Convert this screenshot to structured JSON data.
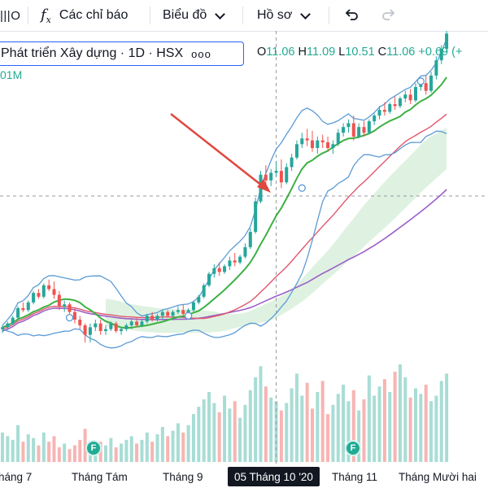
{
  "toolbar": {
    "indicators_label": "Các chỉ báo",
    "chart_type_label": "Biểu đồ",
    "profile_label": "Hồ sơ",
    "fx_icon": "fx-icon",
    "undo_icon": "undo-icon",
    "redo_icon": "redo-icon",
    "truncated_icon": "compare-icon"
  },
  "symbol": {
    "title": "Phát triển Xây dựng · 1D · HSX",
    "more": "ooo"
  },
  "ohlc": {
    "o_label": "O",
    "o": "11.06",
    "h_label": "H",
    "h": "11.09",
    "l_label": "L",
    "l": "10.51",
    "c_label": "C",
    "c": "11.06",
    "change": "+0.69",
    "change_paren": "(+"
  },
  "volume_legend": "01M",
  "events": [
    {
      "label": "F"
    },
    {
      "label": "F"
    }
  ],
  "colors": {
    "up": "#26a69a",
    "down": "#ef5350",
    "bollinger": "#5b9bd5",
    "ma_green": "#3cb043",
    "ma_red": "#e0576c",
    "ma_purple": "#9c5fc9",
    "cloud": "#d7efd9",
    "arrow": "#e0483e"
  },
  "chart_data": {
    "type": "candlestick",
    "x_tick_labels": [
      "háng 7",
      "Tháng Tám",
      "Tháng 9",
      "05 Tháng 10 '20",
      "Tháng 11",
      "Tháng Mười hai"
    ],
    "highlighted_x_label": "05 Tháng 10 '20",
    "y_range": [
      2.6,
      11.6
    ],
    "candles": [
      [
        3.95,
        4.05,
        3.85,
        4.0
      ],
      [
        4.0,
        4.15,
        3.95,
        4.1
      ],
      [
        4.1,
        4.3,
        4.05,
        4.25
      ],
      [
        4.25,
        4.55,
        4.2,
        4.5
      ],
      [
        4.5,
        4.65,
        4.4,
        4.45
      ],
      [
        4.45,
        4.7,
        4.4,
        4.65
      ],
      [
        4.65,
        4.95,
        4.6,
        4.9
      ],
      [
        4.9,
        5.0,
        4.75,
        4.8
      ],
      [
        4.8,
        5.15,
        4.75,
        5.1
      ],
      [
        5.1,
        5.25,
        4.95,
        5.0
      ],
      [
        5.0,
        5.2,
        4.75,
        4.85
      ],
      [
        4.85,
        4.95,
        4.45,
        4.55
      ],
      [
        4.55,
        4.7,
        4.4,
        4.6
      ],
      [
        4.6,
        4.65,
        4.3,
        4.4
      ],
      [
        4.4,
        4.5,
        4.1,
        4.2
      ],
      [
        4.2,
        4.3,
        3.95,
        4.05
      ],
      [
        4.05,
        4.1,
        3.6,
        3.8
      ],
      [
        3.8,
        4.1,
        3.6,
        4.0
      ],
      [
        4.0,
        4.2,
        3.9,
        4.1
      ],
      [
        4.1,
        4.2,
        3.8,
        3.9
      ],
      [
        3.9,
        4.05,
        3.8,
        3.95
      ],
      [
        3.95,
        4.15,
        3.9,
        4.1
      ],
      [
        4.1,
        4.15,
        3.85,
        3.9
      ],
      [
        3.9,
        4.0,
        3.8,
        3.95
      ],
      [
        3.95,
        4.1,
        3.9,
        4.05
      ],
      [
        4.05,
        4.2,
        3.95,
        4.15
      ],
      [
        4.15,
        4.25,
        4.0,
        4.05
      ],
      [
        4.05,
        4.2,
        4.0,
        4.15
      ],
      [
        4.15,
        4.35,
        4.1,
        4.3
      ],
      [
        4.3,
        4.4,
        4.15,
        4.2
      ],
      [
        4.2,
        4.35,
        4.15,
        4.3
      ],
      [
        4.3,
        4.45,
        4.2,
        4.4
      ],
      [
        4.4,
        4.45,
        4.25,
        4.3
      ],
      [
        4.3,
        4.45,
        4.25,
        4.4
      ],
      [
        4.4,
        4.55,
        4.35,
        4.45
      ],
      [
        4.45,
        4.6,
        4.3,
        4.35
      ],
      [
        4.35,
        4.5,
        4.25,
        4.45
      ],
      [
        4.45,
        4.7,
        4.4,
        4.65
      ],
      [
        4.65,
        4.85,
        4.6,
        4.8
      ],
      [
        4.8,
        5.15,
        4.75,
        5.1
      ],
      [
        5.1,
        5.45,
        5.05,
        5.4
      ],
      [
        5.4,
        5.65,
        5.3,
        5.55
      ],
      [
        5.55,
        5.7,
        5.35,
        5.45
      ],
      [
        5.45,
        5.65,
        5.4,
        5.6
      ],
      [
        5.6,
        5.85,
        5.5,
        5.75
      ],
      [
        5.75,
        5.95,
        5.6,
        5.7
      ],
      [
        5.7,
        5.9,
        5.65,
        5.85
      ],
      [
        5.85,
        6.2,
        5.8,
        6.1
      ],
      [
        6.1,
        6.6,
        6.05,
        6.5
      ],
      [
        6.5,
        7.4,
        6.45,
        7.3
      ],
      [
        7.3,
        8.1,
        7.25,
        8.0
      ],
      [
        8.0,
        8.25,
        7.7,
        7.85
      ],
      [
        7.85,
        8.15,
        7.7,
        8.05
      ],
      [
        8.05,
        8.35,
        7.95,
        8.1
      ],
      [
        8.1,
        8.4,
        7.65,
        7.8
      ],
      [
        7.8,
        8.3,
        7.75,
        8.2
      ],
      [
        8.2,
        8.55,
        8.1,
        8.45
      ],
      [
        8.45,
        8.9,
        8.4,
        8.8
      ],
      [
        8.8,
        9.1,
        8.7,
        8.95
      ],
      [
        8.95,
        9.2,
        8.75,
        8.9
      ],
      [
        8.9,
        9.15,
        8.6,
        8.7
      ],
      [
        8.7,
        9.0,
        8.55,
        8.9
      ],
      [
        8.9,
        9.05,
        8.7,
        8.85
      ],
      [
        8.85,
        9.0,
        8.6,
        8.7
      ],
      [
        8.7,
        8.9,
        8.55,
        8.8
      ],
      [
        8.8,
        9.2,
        8.75,
        9.1
      ],
      [
        9.1,
        9.35,
        9.0,
        9.25
      ],
      [
        9.25,
        9.45,
        9.1,
        9.35
      ],
      [
        9.35,
        9.55,
        8.9,
        9.0
      ],
      [
        9.0,
        9.35,
        8.95,
        9.25
      ],
      [
        9.25,
        9.4,
        9.0,
        9.1
      ],
      [
        9.1,
        9.45,
        9.05,
        9.4
      ],
      [
        9.4,
        9.6,
        9.3,
        9.55
      ],
      [
        9.55,
        9.8,
        9.45,
        9.7
      ],
      [
        9.7,
        9.9,
        9.55,
        9.65
      ],
      [
        9.65,
        9.9,
        9.6,
        9.85
      ],
      [
        9.85,
        10.05,
        9.7,
        9.8
      ],
      [
        9.8,
        10.05,
        9.75,
        10.0
      ],
      [
        10.0,
        10.2,
        9.9,
        10.1
      ],
      [
        10.1,
        10.25,
        9.85,
        9.95
      ],
      [
        9.95,
        10.4,
        9.9,
        10.3
      ],
      [
        10.3,
        10.55,
        10.2,
        10.4
      ],
      [
        10.4,
        10.6,
        10.1,
        10.2
      ],
      [
        10.2,
        10.7,
        10.15,
        10.6
      ],
      [
        10.6,
        11.1,
        10.5,
        11.0
      ],
      [
        11.0,
        11.4,
        10.9,
        11.3
      ],
      [
        11.3,
        11.8,
        11.2,
        11.7
      ]
    ],
    "volumes": [
      1.6,
      1.4,
      1.2,
      2.0,
      1.1,
      1.5,
      1.3,
      0.9,
      1.6,
      1.1,
      1.4,
      0.8,
      1.0,
      0.7,
      0.9,
      1.2,
      1.8,
      1.0,
      0.8,
      1.1,
      0.9,
      1.3,
      0.8,
      1.0,
      1.2,
      1.4,
      1.0,
      1.2,
      1.6,
      1.1,
      1.5,
      1.9,
      1.4,
      1.7,
      2.1,
      1.6,
      2.0,
      2.6,
      3.0,
      3.4,
      3.8,
      3.2,
      2.7,
      3.6,
      2.9,
      3.3,
      2.4,
      3.1,
      3.9,
      4.6,
      5.2,
      4.1,
      3.5,
      3.3,
      2.8,
      3.2,
      4.0,
      4.8,
      3.6,
      4.3,
      2.9,
      3.8,
      4.4,
      2.6,
      3.1,
      3.7,
      4.2,
      3.3,
      3.9,
      2.8,
      3.4,
      4.7,
      3.6,
      4.1,
      4.5,
      3.8,
      4.9,
      5.3,
      4.6,
      3.5,
      4.0,
      3.7,
      4.2,
      3.3,
      3.6,
      4.4,
      4.8
    ]
  }
}
